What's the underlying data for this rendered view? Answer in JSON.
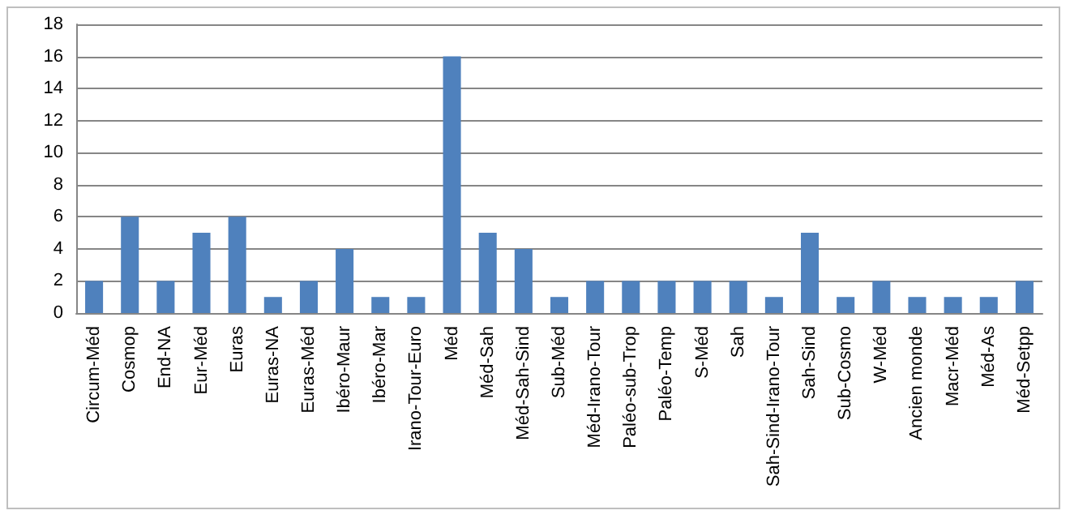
{
  "chart_data": {
    "type": "bar",
    "categories": [
      "Circum-Méd",
      "Cosmop",
      "End-NA",
      "Eur-Méd",
      "Euras",
      "Euras-NA",
      "Euras-Méd",
      "Ibéro-Maur",
      "Ibéro-Mar",
      "Irano-Tour-Euro",
      "Méd",
      "Méd-Sah",
      "Méd-Sah-Sind",
      "Sub-Méd",
      "Méd-Irano-Tour",
      "Paléo-sub-Trop",
      "Paléo-Temp",
      "S-Méd",
      "Sah",
      "Sah-Sind-Irano-Tour",
      "Sah-Sind",
      "Sub-Cosmo",
      "W-Méd",
      "Ancien monde",
      "Macr-Méd",
      "Méd-As",
      "Méd-Setpp"
    ],
    "values": [
      2,
      6,
      2,
      5,
      6,
      1,
      2,
      4,
      1,
      1,
      16,
      5,
      4,
      1,
      2,
      2,
      2,
      2,
      2,
      1,
      5,
      1,
      2,
      1,
      1,
      1,
      2
    ],
    "color": "#4f81bd",
    "ylim": [
      0,
      18
    ],
    "yticks": [
      0,
      2,
      4,
      6,
      8,
      10,
      12,
      14,
      16,
      18
    ],
    "grid": "y"
  }
}
